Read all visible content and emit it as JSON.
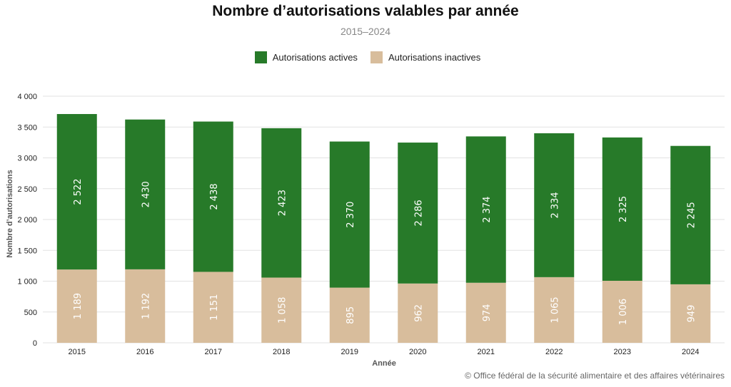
{
  "chart_data": {
    "type": "bar",
    "stacked": true,
    "title": "Nombre d’autorisations valables par année",
    "subtitle": "2015–2024",
    "xlabel": "Année",
    "ylabel": "Nombre d’autorisations",
    "ylim": [
      0,
      4000
    ],
    "yticks": [
      "0",
      "500",
      "1 000",
      "1 500",
      "2 000",
      "2 500",
      "3 000",
      "3 500",
      "4 000"
    ],
    "ytick_values": [
      0,
      500,
      1000,
      1500,
      2000,
      2500,
      3000,
      3500,
      4000
    ],
    "grid": true,
    "legend_position": "top",
    "categories": [
      "2015",
      "2016",
      "2017",
      "2018",
      "2019",
      "2020",
      "2021",
      "2022",
      "2023",
      "2024"
    ],
    "series": [
      {
        "name": "Autorisations inactives",
        "color": "#d8bd9c",
        "values": [
          1189,
          1192,
          1151,
          1058,
          895,
          962,
          974,
          1065,
          1006,
          949
        ],
        "labels": [
          "1 189",
          "1 192",
          "1 151",
          "1 058",
          "895",
          "962",
          "974",
          "1 065",
          "1 006",
          "949"
        ]
      },
      {
        "name": "Autorisations actives",
        "color": "#277a29",
        "values": [
          2522,
          2430,
          2438,
          2423,
          2370,
          2286,
          2374,
          2334,
          2325,
          2245
        ],
        "labels": [
          "2 522",
          "2 430",
          "2 438",
          "2 423",
          "2 370",
          "2 286",
          "2 374",
          "2 334",
          "2 325",
          "2 245"
        ]
      }
    ],
    "legend": [
      "Autorisations actives",
      "Autorisations inactives"
    ]
  },
  "source": "© Office fédéral de la sécurité alimentaire et des affaires vétérinaires"
}
